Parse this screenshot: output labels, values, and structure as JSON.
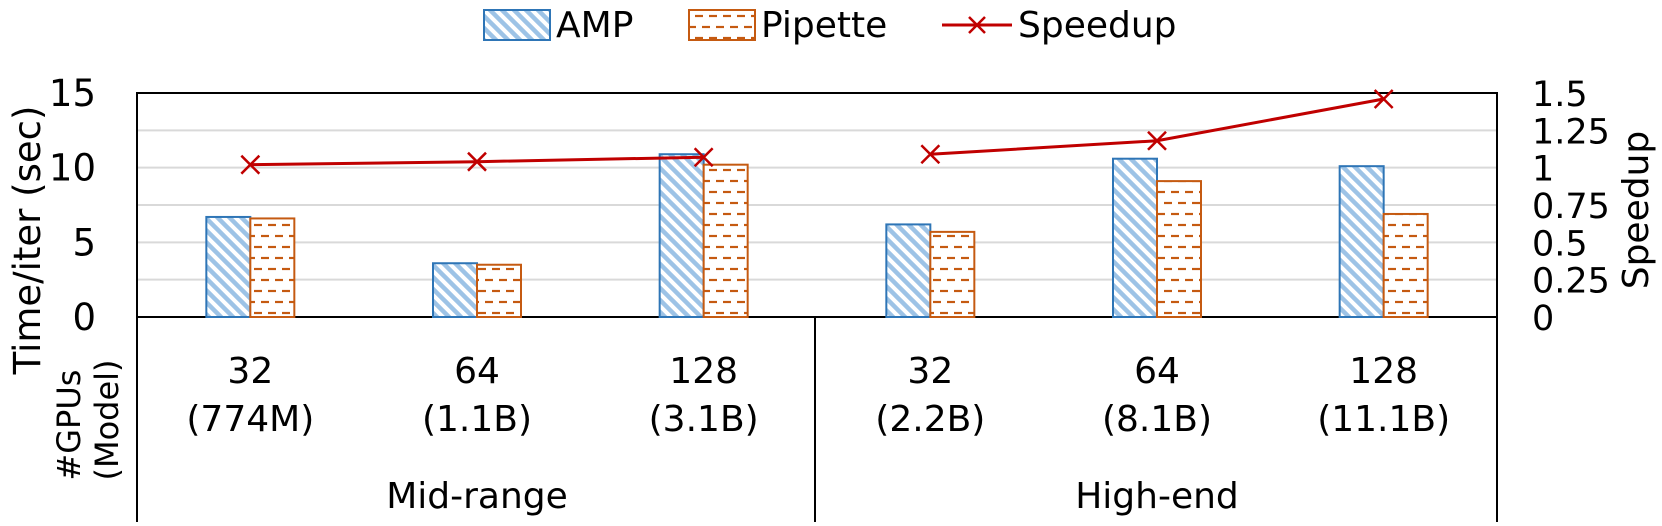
{
  "chart_data": {
    "type": "bar",
    "legend": {
      "position": "top-center",
      "entries": [
        {
          "key": "amp",
          "label": "AMP"
        },
        {
          "key": "pipette",
          "label": "Pipette"
        },
        {
          "key": "speedup",
          "label": "Speedup"
        }
      ]
    },
    "ylabel_left": "Time/iter (sec)",
    "ylabel_right": "Speedup",
    "xlabel": "#GPUs (Model)",
    "ylim_left": [
      0,
      15
    ],
    "yticks_left": [
      "0",
      "5",
      "10",
      "15"
    ],
    "ylim_right": [
      0,
      1.5
    ],
    "yticks_right": [
      "0",
      "0.25",
      "0.5",
      "0.75",
      "1",
      "1.25",
      "1.5"
    ],
    "grid": true,
    "groups": [
      {
        "label": "Mid-range",
        "categories": [
          0,
          1,
          2
        ]
      },
      {
        "label": "High-end",
        "categories": [
          3,
          4,
          5
        ]
      }
    ],
    "categories": [
      {
        "gpus": "32",
        "model": "(774M)"
      },
      {
        "gpus": "64",
        "model": "(1.1B)"
      },
      {
        "gpus": "128",
        "model": "(3.1B)"
      },
      {
        "gpus": "32",
        "model": "(2.2B)"
      },
      {
        "gpus": "64",
        "model": "(8.1B)"
      },
      {
        "gpus": "128",
        "model": "(11.1B)"
      }
    ],
    "series": [
      {
        "name": "AMP",
        "kind": "bar",
        "axis": "left",
        "values": [
          6.7,
          3.6,
          10.9,
          6.2,
          10.6,
          10.1
        ]
      },
      {
        "name": "Pipette",
        "kind": "bar",
        "axis": "left",
        "values": [
          6.6,
          3.5,
          10.2,
          5.7,
          9.1,
          6.9
        ]
      },
      {
        "name": "Speedup",
        "kind": "line",
        "axis": "right",
        "values": [
          1.02,
          1.04,
          1.07,
          1.09,
          1.18,
          1.46
        ]
      }
    ],
    "colors": {
      "amp_edge": "#2E75B6",
      "amp_fill": "#9DC3E6",
      "pipette_edge": "#C55A11",
      "speedup": "#C00000",
      "grid": "#D9D9D9"
    }
  }
}
